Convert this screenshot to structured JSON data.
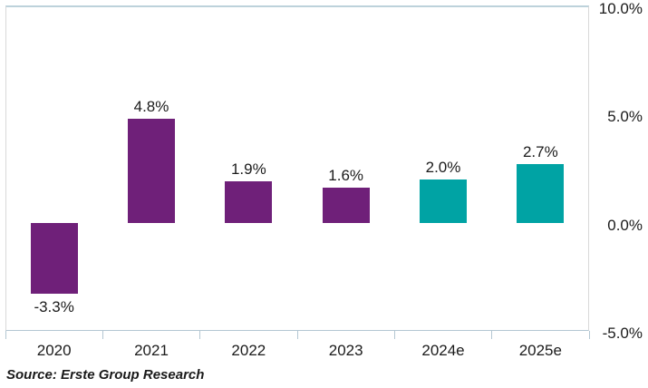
{
  "chart_data": {
    "type": "bar",
    "title": "",
    "categories": [
      "2020",
      "2021",
      "2022",
      "2023",
      "2024e",
      "2025e"
    ],
    "values": [
      -3.3,
      4.8,
      1.9,
      1.6,
      2.0,
      2.7
    ],
    "value_labels": [
      "-3.3%",
      "4.8%",
      "1.9%",
      "1.6%",
      "2.0%",
      "2.7%"
    ],
    "bar_colors": [
      "#6F2079",
      "#6F2079",
      "#6F2079",
      "#6F2079",
      "#00A3A4",
      "#00A3A4"
    ],
    "y_ticks": [
      "10.0%",
      "5.0%",
      "0.0%",
      "-5.0%"
    ],
    "y_tick_values": [
      10,
      5,
      0,
      -5
    ],
    "ylim": [
      -5,
      10
    ],
    "xlabel": "",
    "ylabel": "",
    "grid": "off",
    "legend": "none",
    "y_axis_side": "right"
  },
  "colors": {
    "bar_actual": "#6F2079",
    "bar_estimate": "#00A3A4",
    "axis_line": "#B4C7D3",
    "plot_border_top": "#BDD2DB",
    "plot_border_side": "#D9D9D9",
    "text": "#1b1b1b"
  },
  "source": {
    "text": "Source: Erste Group Research"
  }
}
